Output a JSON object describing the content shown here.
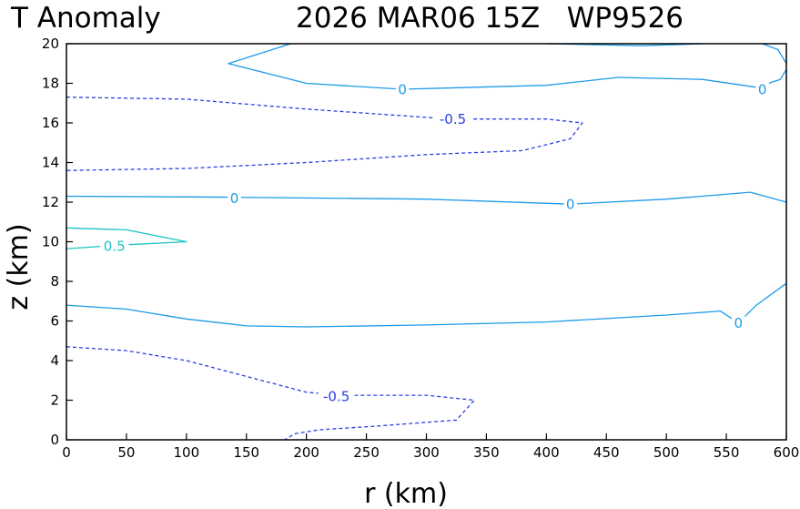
{
  "title": {
    "left": "T Anomaly",
    "right": "2026 MAR06 15Z   WP9526"
  },
  "colors": {
    "zero": "#1e9be8",
    "negative": "#2a3ee6",
    "positive": "#19c4c4",
    "frame": "#000000"
  },
  "chart_data": {
    "type": "contour",
    "xlabel": "r (km)",
    "ylabel": "z (km)",
    "xlim": [
      0,
      600
    ],
    "ylim": [
      0,
      20
    ],
    "xticks": [
      0,
      50,
      100,
      150,
      200,
      250,
      300,
      350,
      400,
      450,
      500,
      550,
      600
    ],
    "yticks": [
      0,
      2,
      4,
      6,
      8,
      10,
      12,
      14,
      16,
      18,
      20
    ],
    "grid": false,
    "contours": [
      {
        "level": "0",
        "kind": "zero",
        "dashed": false,
        "points": [
          [
            187,
            20
          ],
          [
            135,
            19
          ],
          [
            200,
            18
          ],
          [
            280,
            17.7
          ],
          [
            400,
            17.9
          ],
          [
            460,
            18.3
          ],
          [
            530,
            18.2
          ],
          [
            575,
            17.8
          ],
          [
            595,
            18.2
          ],
          [
            600,
            18.7
          ]
        ]
      },
      {
        "level": "0",
        "kind": "zero",
        "dashed": false,
        "points": [
          [
            600,
            19
          ],
          [
            593,
            19.7
          ],
          [
            580,
            20
          ]
        ]
      },
      {
        "level": "0",
        "kind": "zero",
        "dashed": false,
        "points": [
          [
            400,
            20
          ],
          [
            480,
            19.9
          ],
          [
            530,
            20
          ]
        ]
      },
      {
        "level": "0",
        "kind": "zero",
        "dashed": false,
        "points": [
          [
            0,
            12.3
          ],
          [
            140,
            12.25
          ],
          [
            300,
            12.15
          ],
          [
            420,
            11.9
          ],
          [
            500,
            12.15
          ],
          [
            570,
            12.5
          ],
          [
            600,
            12
          ]
        ]
      },
      {
        "level": "0",
        "kind": "zero",
        "dashed": false,
        "points": [
          [
            0,
            6.8
          ],
          [
            50,
            6.6
          ],
          [
            100,
            6.1
          ],
          [
            150,
            5.75
          ],
          [
            200,
            5.7
          ],
          [
            300,
            5.8
          ],
          [
            400,
            5.95
          ],
          [
            500,
            6.3
          ],
          [
            545,
            6.5
          ],
          [
            560,
            5.9
          ],
          [
            575,
            6.8
          ],
          [
            600,
            7.9
          ]
        ]
      },
      {
        "level": "-0.5",
        "kind": "negative",
        "dashed": true,
        "points": [
          [
            0,
            17.3
          ],
          [
            100,
            17.2
          ],
          [
            200,
            16.7
          ],
          [
            320,
            16.2
          ],
          [
            400,
            16.2
          ],
          [
            430,
            16
          ],
          [
            420,
            15.2
          ],
          [
            380,
            14.6
          ],
          [
            300,
            14.4
          ],
          [
            200,
            14
          ],
          [
            100,
            13.7
          ],
          [
            0,
            13.6
          ]
        ]
      },
      {
        "level": "-0.5",
        "kind": "negative",
        "dashed": true,
        "points": [
          [
            0,
            4.7
          ],
          [
            50,
            4.5
          ],
          [
            100,
            4
          ],
          [
            150,
            3.2
          ],
          [
            200,
            2.4
          ],
          [
            230,
            2.25
          ],
          [
            300,
            2.25
          ],
          [
            340,
            2.0
          ],
          [
            325,
            1.0
          ],
          [
            260,
            0.7
          ],
          [
            210,
            0.5
          ],
          [
            190,
            0.3
          ],
          [
            182,
            0
          ]
        ]
      },
      {
        "level": "0.5",
        "kind": "positive",
        "dashed": false,
        "points": [
          [
            0,
            10.7
          ],
          [
            50,
            10.6
          ],
          [
            100,
            10.0
          ],
          [
            50,
            9.85
          ],
          [
            0,
            9.65
          ]
        ]
      }
    ],
    "labels": [
      {
        "text": "0",
        "x": 280,
        "y": 17.7,
        "kind": "zero"
      },
      {
        "text": "0",
        "x": 580,
        "y": 17.7,
        "kind": "zero"
      },
      {
        "text": "-0.5",
        "x": 322,
        "y": 16.2,
        "kind": "negative"
      },
      {
        "text": "0",
        "x": 140,
        "y": 12.2,
        "kind": "zero"
      },
      {
        "text": "0",
        "x": 420,
        "y": 11.9,
        "kind": "zero"
      },
      {
        "text": "0.5",
        "x": 40,
        "y": 9.8,
        "kind": "positive"
      },
      {
        "text": "0",
        "x": 560,
        "y": 5.9,
        "kind": "zero"
      },
      {
        "text": "-0.5",
        "x": 225,
        "y": 2.2,
        "kind": "negative"
      }
    ]
  }
}
